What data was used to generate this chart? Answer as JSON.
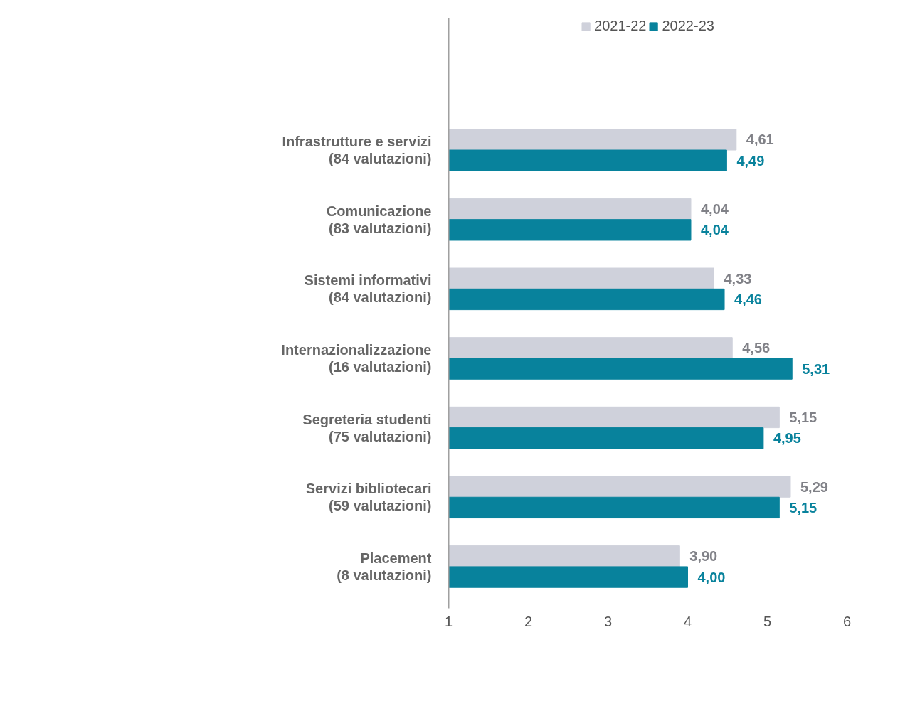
{
  "chart_data": {
    "type": "bar",
    "orientation": "horizontal",
    "categories": [
      "Infrastrutture e servizi\n(84 valutazioni)",
      "Comunicazione\n(83 valutazioni)",
      "Sistemi informativi\n(84 valutazioni)",
      "Internazionalizzazione\n(16 valutazioni)",
      "Segreteria studenti\n(75 valutazioni)",
      "Servizi bibliotecari\n(59 valutazioni)",
      "Placement\n(8 valutazioni)"
    ],
    "series": [
      {
        "name": "2021-22",
        "color": "#cfd1db",
        "values": [
          4.61,
          4.04,
          4.33,
          4.56,
          5.15,
          5.29,
          3.9
        ],
        "value_labels": [
          "4,61",
          "4,04",
          "4,33",
          "4,56",
          "5,15",
          "5,29",
          "3,90"
        ]
      },
      {
        "name": "2022-23",
        "color": "#08829c",
        "values": [
          4.49,
          4.04,
          4.46,
          5.31,
          4.95,
          5.15,
          4.0
        ],
        "value_labels": [
          "4,49",
          "4,04",
          "4,46",
          "5,31",
          "4,95",
          "5,15",
          "4,00"
        ]
      }
    ],
    "xlim": [
      1,
      6
    ],
    "xticks": [
      1,
      2,
      3,
      4,
      5,
      6
    ],
    "grid": false,
    "legend": "top"
  }
}
